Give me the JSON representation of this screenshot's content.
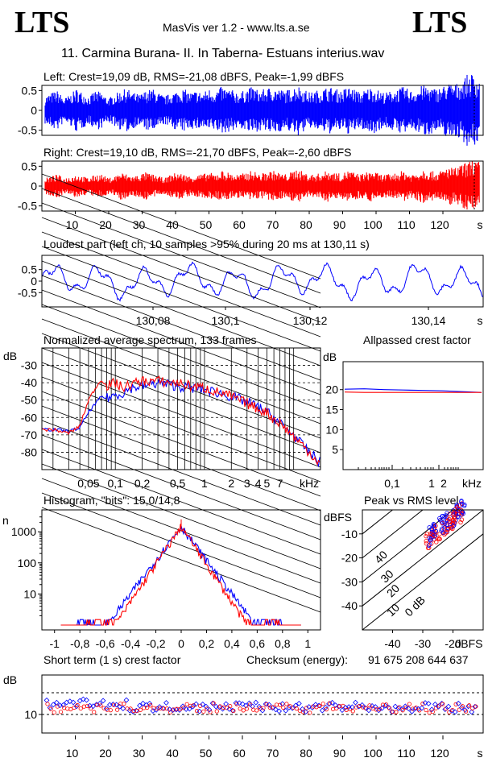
{
  "header": {
    "logo_left": "LTS",
    "logo_right": "LTS",
    "software": "MasVis ver 1.2 - www.lts.a.se",
    "track": "11. Carmina Burana- II. In Taberna- Estuans interius.wav"
  },
  "chart_data": [
    {
      "type": "line",
      "name": "left-waveform",
      "title": "Left: Crest=19,09 dB, RMS=-21,08 dBFS, Peak=-1,99 dBFS",
      "y_ticks": [
        "0.5",
        "0",
        "-0.5"
      ],
      "ylim": [
        -1,
        1
      ],
      "xlim": [
        0,
        132
      ],
      "color": "#0000ff",
      "envelope": [
        0.35,
        0.45,
        0.5,
        0.3,
        0.4,
        0.55,
        0.45,
        0.35,
        0.5,
        0.45,
        0.3,
        0.4,
        0.5,
        0.55,
        0.45,
        0.4,
        0.5,
        0.55,
        0.45,
        0.35,
        0.45,
        0.5,
        0.55,
        0.45,
        0.5,
        0.45,
        0.55,
        0.5,
        0.6,
        0.55,
        0.5,
        0.45,
        0.55,
        0.6,
        0.5,
        0.55,
        0.6,
        0.55,
        0.5,
        0.55,
        0.65,
        0.55,
        0.45,
        0.5,
        0.55,
        0.6,
        0.55,
        0.5,
        0.6,
        0.55,
        0.45,
        0.55,
        0.6,
        0.5,
        0.45,
        0.5,
        0.55,
        0.6,
        0.5,
        0.55,
        0.65,
        0.6,
        0.55,
        0.6,
        0.7,
        0.65,
        0.75,
        0.9,
        0.95,
        0.75
      ]
    },
    {
      "type": "line",
      "name": "right-waveform",
      "title": "Right: Crest=19,10 dB, RMS=-21,70 dBFS, Peak=-2,60 dBFS",
      "y_ticks": [
        "0.5",
        "0",
        "-0.5"
      ],
      "ylim": [
        -1,
        1
      ],
      "xlim": [
        0,
        132
      ],
      "x_ticks": [
        "10",
        "20",
        "30",
        "40",
        "50",
        "60",
        "70",
        "80",
        "90",
        "100",
        "110",
        "120",
        "s"
      ],
      "color": "#ff0000",
      "envelope": [
        0.2,
        0.25,
        0.3,
        0.2,
        0.25,
        0.3,
        0.25,
        0.2,
        0.3,
        0.3,
        0.2,
        0.25,
        0.35,
        0.3,
        0.25,
        0.3,
        0.35,
        0.3,
        0.25,
        0.2,
        0.3,
        0.35,
        0.3,
        0.25,
        0.3,
        0.3,
        0.35,
        0.3,
        0.4,
        0.35,
        0.3,
        0.3,
        0.35,
        0.4,
        0.3,
        0.35,
        0.4,
        0.35,
        0.3,
        0.35,
        0.45,
        0.35,
        0.3,
        0.3,
        0.35,
        0.4,
        0.35,
        0.3,
        0.4,
        0.35,
        0.3,
        0.35,
        0.4,
        0.3,
        0.3,
        0.3,
        0.35,
        0.4,
        0.3,
        0.35,
        0.45,
        0.4,
        0.35,
        0.4,
        0.5,
        0.45,
        0.55,
        0.6,
        0.7,
        0.6
      ]
    },
    {
      "type": "line",
      "name": "loudest-part",
      "title": "Loudest part (left  ch, 10 samples >95% during 20 ms at 130,11 s)",
      "y_ticks": [
        "0.5",
        "0",
        "-0.5"
      ],
      "x_ticks": [
        "130,08",
        "130,1",
        "130,12",
        "130,14",
        "s"
      ],
      "xlim": [
        130.065,
        130.155
      ],
      "ylim": [
        -1,
        1
      ],
      "color": "#0000ff"
    },
    {
      "type": "line",
      "name": "spectrum",
      "title": "Normalized average spectrum, 133 frames",
      "ylabel": "dB",
      "xlabel": "kHz",
      "y_ticks": [
        "-30",
        "-40",
        "-50",
        "-60",
        "-70",
        "-80"
      ],
      "x_ticks": [
        "0,05",
        "0,1",
        "0,2",
        "0,5",
        "1",
        "2",
        "3",
        "4",
        "5",
        "7",
        "kHz"
      ],
      "ylim": [
        -90,
        -20
      ],
      "series": [
        {
          "color": "#0000ff",
          "points": [
            [
              0.02,
              -67
            ],
            [
              0.03,
              -68
            ],
            [
              0.04,
              -66
            ],
            [
              0.05,
              -57
            ],
            [
              0.06,
              -52
            ],
            [
              0.07,
              -48
            ],
            [
              0.08,
              -49
            ],
            [
              0.1,
              -47
            ],
            [
              0.12,
              -46
            ],
            [
              0.15,
              -43
            ],
            [
              0.2,
              -42
            ],
            [
              0.3,
              -40
            ],
            [
              0.4,
              -41
            ],
            [
              0.5,
              -42
            ],
            [
              0.7,
              -43
            ],
            [
              1,
              -44
            ],
            [
              1.5,
              -46
            ],
            [
              2,
              -48
            ],
            [
              3,
              -51
            ],
            [
              4,
              -54
            ],
            [
              5,
              -57
            ],
            [
              6,
              -60
            ],
            [
              7,
              -63
            ],
            [
              8,
              -66
            ],
            [
              10,
              -70
            ],
            [
              12,
              -75
            ],
            [
              15,
              -80
            ],
            [
              20,
              -86
            ]
          ]
        },
        {
          "color": "#ff0000",
          "points": [
            [
              0.02,
              -67
            ],
            [
              0.03,
              -69
            ],
            [
              0.04,
              -65
            ],
            [
              0.05,
              -50
            ],
            [
              0.06,
              -43
            ],
            [
              0.07,
              -38
            ],
            [
              0.08,
              -42
            ],
            [
              0.1,
              -40
            ],
            [
              0.12,
              -43
            ],
            [
              0.15,
              -41
            ],
            [
              0.2,
              -39
            ],
            [
              0.3,
              -39
            ],
            [
              0.4,
              -40
            ],
            [
              0.5,
              -40
            ],
            [
              0.7,
              -42
            ],
            [
              1,
              -43
            ],
            [
              1.5,
              -46
            ],
            [
              2,
              -48
            ],
            [
              3,
              -52
            ],
            [
              4,
              -55
            ],
            [
              5,
              -57
            ],
            [
              6,
              -61
            ],
            [
              7,
              -63
            ],
            [
              8,
              -66
            ],
            [
              10,
              -71
            ],
            [
              12,
              -75
            ],
            [
              15,
              -80
            ],
            [
              20,
              -87
            ]
          ]
        }
      ]
    },
    {
      "type": "line",
      "name": "allpassed-crest",
      "title": "Allpassed crest factor",
      "ylabel": "dB",
      "xlabel": "kHz",
      "y_ticks": [
        "20",
        "15",
        "10",
        "5"
      ],
      "x_ticks": [
        "0,1",
        "1",
        "2",
        "kHz"
      ],
      "ylim": [
        0,
        25
      ],
      "series": [
        {
          "color": "#0000ff",
          "values": [
            20.1,
            20.2,
            20.0,
            19.9,
            19.8,
            19.7,
            19.5,
            19.3
          ]
        },
        {
          "color": "#ff0000",
          "values": [
            19.4,
            19.3,
            19.3,
            19.3,
            19.3,
            19.3,
            19.3,
            19.3
          ]
        }
      ]
    },
    {
      "type": "line",
      "name": "histogram",
      "title": "Histogram, \"bits\": 15,0/14,8",
      "ylabel": "n",
      "y_ticks": [
        "1000",
        "100",
        "10"
      ],
      "x_ticks": [
        "-1",
        "-0,8",
        "-0,6",
        "-0,4",
        "-0,2",
        "0",
        "0,2",
        "0,4",
        "0,6",
        "0,8",
        "1"
      ],
      "xlim": [
        -1.1,
        1.1
      ],
      "peak": 1500
    },
    {
      "type": "scatter",
      "name": "peak-vs-rms",
      "title": "Peak vs RMS level",
      "ylabel": "dBFS",
      "xlabel": "dBFS",
      "y_ticks": [
        "-10",
        "-20",
        "-30",
        "-40"
      ],
      "x_ticks": [
        "-40",
        "-30",
        "-20"
      ],
      "crest_labels": [
        "40",
        "30",
        "20",
        "10",
        "0 dB"
      ],
      "xlim": [
        -50,
        -10
      ],
      "ylim": [
        -50,
        0
      ]
    },
    {
      "type": "scatter",
      "name": "short-term-crest",
      "title": "Short term (1 s) crest factor",
      "checksum_label": "Checksum (energy):",
      "checksum_value": "91 675 208 644 637",
      "ylabel": "dB",
      "y_ticks": [
        "10"
      ],
      "x_ticks": [
        "10",
        "20",
        "30",
        "40",
        "50",
        "60",
        "70",
        "80",
        "90",
        "100",
        "110",
        "120",
        "s"
      ],
      "xlim": [
        0,
        132
      ]
    }
  ]
}
